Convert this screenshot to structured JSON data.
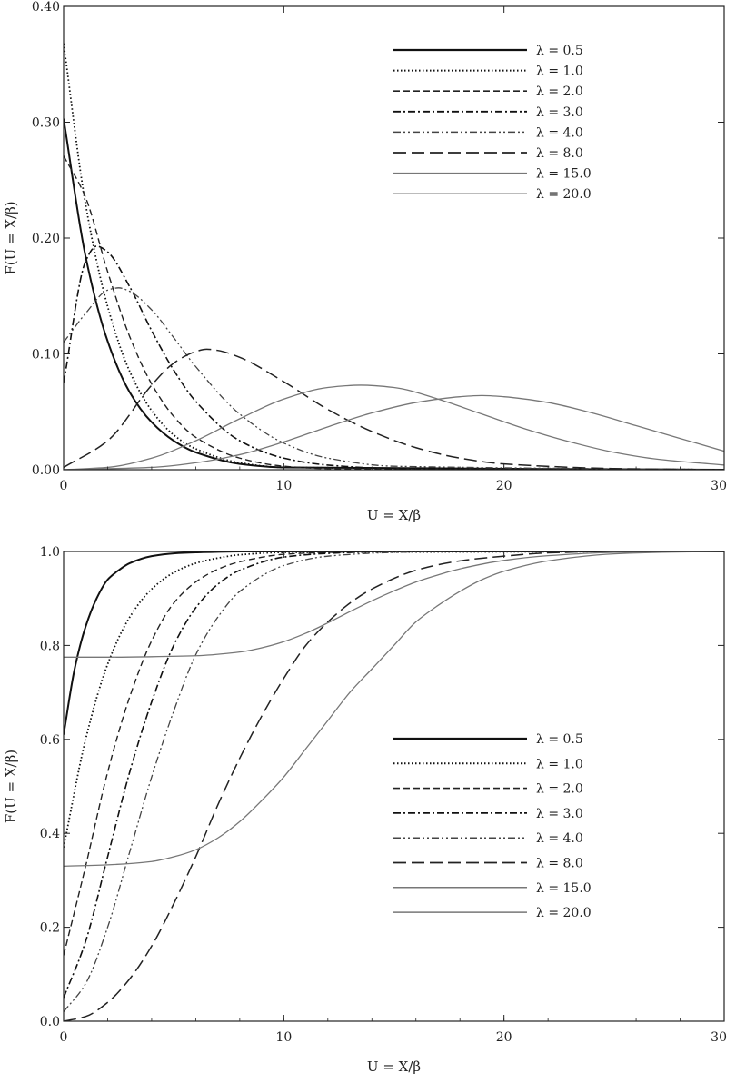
{
  "chart_data": [
    {
      "type": "line",
      "xlabel": "U = X/β",
      "ylabel": "F(U = X/β)",
      "xlim": [
        0,
        30
      ],
      "ylim": [
        0,
        0.4
      ],
      "x_ticks": [
        "0",
        "10",
        "20",
        "30"
      ],
      "y_ticks": [
        "0.00",
        "0.10",
        "0.20",
        "0.30",
        "0.40"
      ],
      "grid": false,
      "legend_position": "top-right",
      "series": [
        {
          "name": "λ = 0.5",
          "style": "solid-bold",
          "x": [
            0,
            1,
            2,
            3,
            4,
            5,
            6,
            8,
            10,
            30
          ],
          "y": [
            0.303,
            0.184,
            0.111,
            0.067,
            0.041,
            0.025,
            0.015,
            0.005,
            0.002,
            0.0
          ]
        },
        {
          "name": "λ = 1.0",
          "style": "dotted",
          "x": [
            0,
            1,
            2,
            3,
            4,
            5,
            6,
            8,
            10,
            30
          ],
          "y": [
            0.368,
            0.229,
            0.141,
            0.085,
            0.051,
            0.03,
            0.018,
            0.006,
            0.002,
            0.0
          ]
        },
        {
          "name": "λ = 2.0",
          "style": "dashed",
          "x": [
            0,
            1,
            2,
            3,
            4,
            5,
            6,
            8,
            10,
            12,
            30
          ],
          "y": [
            0.271,
            0.235,
            0.171,
            0.115,
            0.074,
            0.046,
            0.028,
            0.01,
            0.003,
            0.001,
            0.0
          ]
        },
        {
          "name": "λ = 3.0",
          "style": "dash-dot",
          "x": [
            0,
            1,
            1.5,
            2,
            3,
            4,
            5,
            6,
            8,
            10,
            12,
            15,
            30
          ],
          "y": [
            0.075,
            0.18,
            0.193,
            0.188,
            0.158,
            0.12,
            0.086,
            0.059,
            0.025,
            0.01,
            0.004,
            0.001,
            0.0
          ]
        },
        {
          "name": "λ = 4.0",
          "style": "dash-dot-dot",
          "x": [
            0,
            1,
            2,
            2.5,
            3,
            4,
            5,
            6,
            8,
            10,
            12,
            15,
            30
          ],
          "y": [
            0.11,
            0.135,
            0.155,
            0.157,
            0.154,
            0.138,
            0.114,
            0.089,
            0.048,
            0.023,
            0.01,
            0.003,
            0.0
          ]
        },
        {
          "name": "λ = 8.0",
          "style": "long-dash",
          "x": [
            0,
            2,
            4,
            5,
            6,
            6.5,
            7,
            8,
            10,
            12,
            14,
            16,
            18,
            20,
            25,
            30
          ],
          "y": [
            0.002,
            0.025,
            0.073,
            0.092,
            0.102,
            0.104,
            0.103,
            0.097,
            0.076,
            0.052,
            0.033,
            0.019,
            0.01,
            0.005,
            0.001,
            0.0
          ]
        },
        {
          "name": "λ = 15.0",
          "style": "solid-thin",
          "x": [
            0,
            2,
            4,
            6,
            8,
            10,
            12,
            13.5,
            15,
            17,
            19,
            21,
            23,
            25,
            27,
            30
          ],
          "y": [
            0.0,
            0.002,
            0.01,
            0.025,
            0.044,
            0.061,
            0.071,
            0.073,
            0.071,
            0.061,
            0.048,
            0.035,
            0.024,
            0.015,
            0.009,
            0.004
          ]
        },
        {
          "name": "λ = 20.0",
          "style": "solid-thin",
          "x": [
            0,
            4,
            6,
            8,
            10,
            12,
            14,
            16,
            18,
            19,
            20,
            22,
            24,
            26,
            28,
            30
          ],
          "y": [
            0.0,
            0.002,
            0.006,
            0.013,
            0.024,
            0.037,
            0.049,
            0.058,
            0.063,
            0.064,
            0.063,
            0.058,
            0.049,
            0.038,
            0.027,
            0.016
          ]
        }
      ]
    },
    {
      "type": "line",
      "xlabel": "U = X/β",
      "ylabel": "F(U = X/β)",
      "xlim": [
        0,
        30
      ],
      "ylim": [
        0,
        1.0
      ],
      "x_ticks": [
        "0",
        "10",
        "20",
        "30"
      ],
      "y_ticks": [
        "0.0",
        "0.2",
        "0.4",
        "0.6",
        "0.8",
        "1.0"
      ],
      "grid": false,
      "legend_position": "center-right",
      "series": [
        {
          "name": "λ = 0.5",
          "style": "solid-bold",
          "x": [
            0,
            0.5,
            1,
            1.5,
            2,
            2.5,
            3,
            4,
            5,
            6,
            8,
            30
          ],
          "y": [
            0.61,
            0.75,
            0.84,
            0.9,
            0.94,
            0.96,
            0.975,
            0.99,
            0.996,
            0.998,
            1.0,
            1.0
          ]
        },
        {
          "name": "λ = 1.0",
          "style": "dotted",
          "x": [
            0,
            1,
            2,
            3,
            4,
            5,
            6,
            7,
            8,
            10,
            30
          ],
          "y": [
            0.37,
            0.6,
            0.76,
            0.86,
            0.92,
            0.955,
            0.975,
            0.986,
            0.993,
            0.998,
            1.0
          ]
        },
        {
          "name": "λ = 2.0",
          "style": "dashed",
          "x": [
            0,
            1,
            2,
            3,
            4,
            5,
            6,
            7,
            8,
            10,
            12,
            15,
            30
          ],
          "y": [
            0.14,
            0.33,
            0.53,
            0.69,
            0.81,
            0.89,
            0.935,
            0.962,
            0.978,
            0.994,
            0.998,
            1.0,
            1.0
          ]
        },
        {
          "name": "λ = 3.0",
          "style": "dash-dot",
          "x": [
            0,
            1,
            2,
            3,
            4,
            5,
            6,
            7,
            8,
            10,
            12,
            15,
            30
          ],
          "y": [
            0.05,
            0.17,
            0.35,
            0.53,
            0.68,
            0.8,
            0.88,
            0.93,
            0.96,
            0.988,
            0.996,
            1.0,
            1.0
          ]
        },
        {
          "name": "λ = 4.0",
          "style": "dash-dot-dot",
          "x": [
            0,
            1,
            2,
            3,
            4,
            5,
            6,
            7,
            8,
            10,
            12,
            15,
            18,
            30
          ],
          "y": [
            0.02,
            0.08,
            0.2,
            0.36,
            0.52,
            0.66,
            0.78,
            0.86,
            0.915,
            0.97,
            0.99,
            0.998,
            1.0,
            1.0
          ]
        },
        {
          "name": "λ = 8.0",
          "style": "long-dash",
          "x": [
            0,
            1,
            2,
            3,
            4,
            5,
            6,
            7,
            8,
            9,
            10,
            11,
            12,
            13,
            14,
            16,
            18,
            20,
            22,
            25,
            30
          ],
          "y": [
            0.0,
            0.01,
            0.04,
            0.09,
            0.16,
            0.25,
            0.35,
            0.46,
            0.56,
            0.65,
            0.73,
            0.8,
            0.85,
            0.89,
            0.92,
            0.96,
            0.98,
            0.99,
            0.997,
            1.0,
            1.0
          ]
        },
        {
          "name": "λ = 15.0",
          "style": "solid-thin",
          "x": [
            0,
            2,
            4,
            6,
            8,
            9,
            10,
            11,
            12,
            13,
            14,
            15,
            16,
            17,
            18,
            20,
            22,
            25,
            30
          ],
          "y": [
            0.775,
            0.775,
            0.776,
            0.778,
            0.786,
            0.795,
            0.808,
            0.826,
            0.848,
            0.872,
            0.895,
            0.916,
            0.935,
            0.95,
            0.963,
            0.981,
            0.991,
            0.998,
            1.0
          ]
        },
        {
          "name": "λ = 20.0",
          "style": "solid-thin",
          "x": [
            0,
            2,
            4,
            5,
            6,
            7,
            8,
            9,
            10,
            11,
            12,
            13,
            14,
            15,
            16,
            17,
            18,
            19,
            20,
            22,
            25,
            28,
            30
          ],
          "y": [
            0.33,
            0.333,
            0.34,
            0.35,
            0.365,
            0.39,
            0.425,
            0.47,
            0.52,
            0.58,
            0.64,
            0.7,
            0.75,
            0.8,
            0.85,
            0.885,
            0.915,
            0.94,
            0.958,
            0.98,
            0.995,
            0.999,
            1.0
          ]
        }
      ]
    }
  ]
}
